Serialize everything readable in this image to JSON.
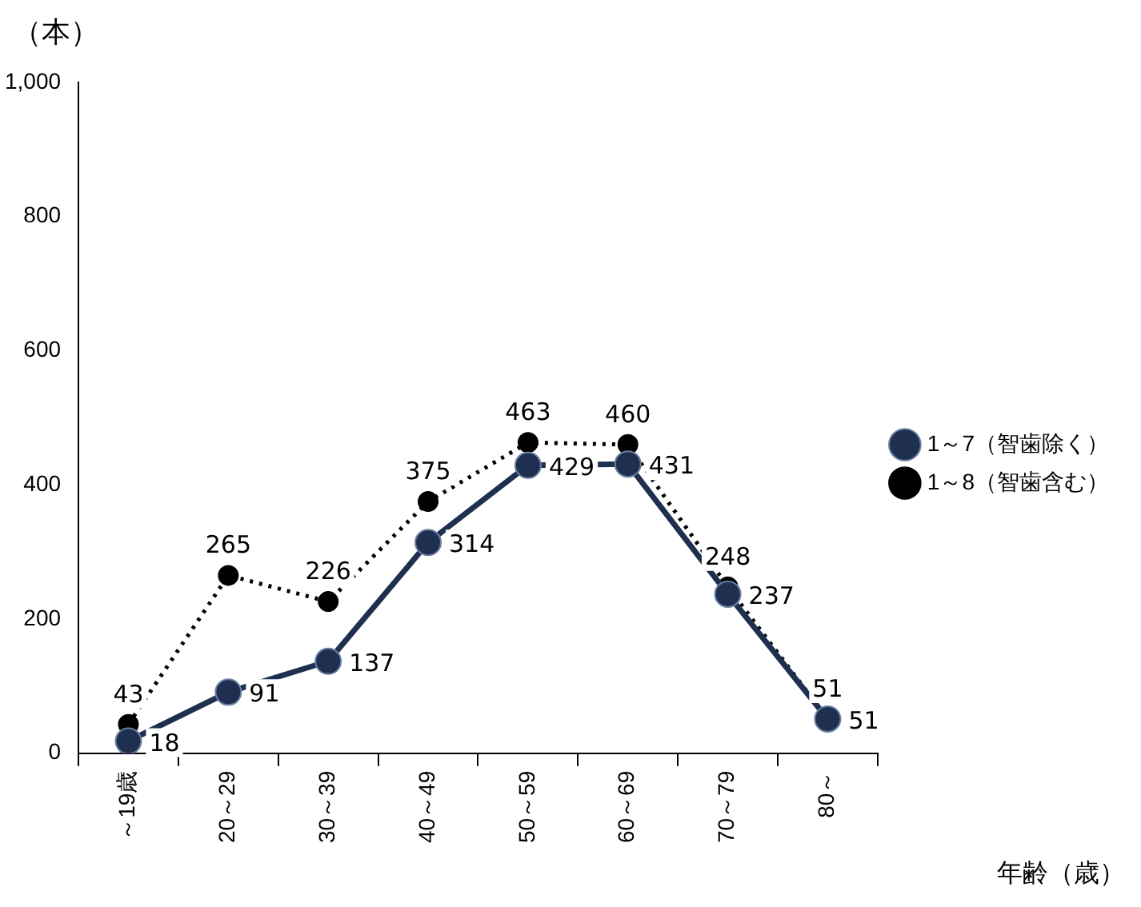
{
  "chart_data": {
    "type": "line",
    "ylabel": "（本）",
    "xlabel": "年齢（歳）",
    "categories": [
      "～19歳",
      "20～29",
      "30～39",
      "40～49",
      "50～59",
      "60～69",
      "70～79",
      "80～"
    ],
    "series": [
      {
        "name": "1～7（智歯除く）",
        "color": "#1f2f4f",
        "line_style": "solid",
        "values": [
          18,
          91,
          137,
          314,
          429,
          431,
          237,
          51
        ]
      },
      {
        "name": "1～8（智歯含む）",
        "color": "#000000",
        "line_style": "dotted",
        "values": [
          43,
          265,
          226,
          375,
          463,
          460,
          248,
          51
        ]
      }
    ],
    "ylim": [
      0,
      1000
    ],
    "yticks": [
      0,
      200,
      400,
      600,
      800,
      {
        "value": 1000,
        "label": "1,000"
      }
    ],
    "grid": false,
    "legend": "right",
    "marker": "circle",
    "data_labels": true
  }
}
